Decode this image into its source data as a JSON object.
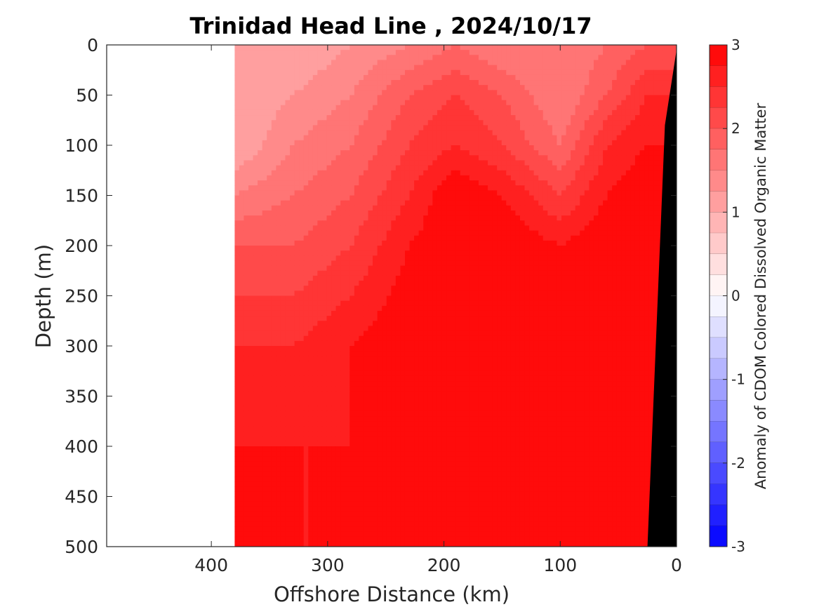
{
  "chart_data": {
    "type": "heatmap",
    "subtype": "filled-contour section",
    "title": "Trinidad Head Line , 2024/10/17",
    "xlabel": "Offshore Distance (km)",
    "ylabel": "Depth (m)",
    "xlim": [
      490,
      0
    ],
    "x_reversed": true,
    "ylim": [
      0,
      500
    ],
    "y_reversed": true,
    "x_ticks": [
      "400",
      "300",
      "200",
      "100",
      "0"
    ],
    "x_tick_values": [
      400,
      300,
      200,
      100,
      0
    ],
    "y_ticks": [
      "0",
      "50",
      "100",
      "150",
      "200",
      "250",
      "300",
      "350",
      "400",
      "450",
      "500"
    ],
    "y_tick_values": [
      0,
      50,
      100,
      150,
      200,
      250,
      300,
      350,
      400,
      450,
      500
    ],
    "data_extent_km": [
      380,
      0
    ],
    "bottom_topography": [
      [
        0,
        5
      ],
      [
        10,
        80
      ],
      [
        25,
        500
      ]
    ],
    "bottom_color": "#000000",
    "colorbar": {
      "label": "Anomaly of CDOM Colored Dissolved Organic Matter",
      "range": [
        -3,
        3
      ],
      "step": 0.25,
      "ticks": [
        "3",
        "2",
        "1",
        "0",
        "-1",
        "-2",
        "-3"
      ],
      "tick_values": [
        3,
        2,
        1,
        0,
        -1,
        -2,
        -3
      ],
      "low_color": "#0000ff",
      "mid_color": "#ffffff",
      "high_color": "#ff0000"
    },
    "anomaly_field": {
      "description": "Positive CDOM anomaly everywhere; strongest (>=2.75) in core 60-200 km offshore below ~150 m and near coast; weaker (0.75-1.75) in upper 100 m and at 300-380 km offshore.",
      "depth_levels": [
        0,
        50,
        100,
        150,
        200,
        300,
        400,
        500
      ],
      "distance_levels": [
        380,
        330,
        280,
        230,
        190,
        150,
        100,
        60,
        25
      ],
      "values": [
        [
          1.0,
          1.0,
          1.25,
          1.5,
          1.75,
          1.5,
          1.5,
          1.75,
          2.0
        ],
        [
          1.0,
          1.25,
          1.5,
          2.0,
          2.25,
          2.0,
          1.5,
          2.0,
          2.5
        ],
        [
          1.0,
          1.5,
          1.75,
          2.25,
          2.5,
          2.25,
          1.75,
          2.5,
          2.75
        ],
        [
          1.5,
          1.75,
          2.0,
          2.5,
          3.0,
          2.75,
          2.25,
          2.75,
          3.0
        ],
        [
          2.0,
          2.0,
          2.25,
          2.75,
          3.0,
          3.0,
          2.75,
          3.0,
          3.0
        ],
        [
          2.5,
          2.5,
          2.75,
          3.0,
          3.0,
          3.0,
          3.0,
          3.0,
          3.0
        ],
        [
          2.75,
          2.75,
          2.75,
          3.0,
          3.0,
          3.0,
          3.0,
          3.0,
          3.0
        ],
        [
          2.75,
          2.75,
          2.75,
          3.0,
          3.0,
          3.0,
          3.0,
          3.0,
          2.75
        ]
      ]
    }
  }
}
